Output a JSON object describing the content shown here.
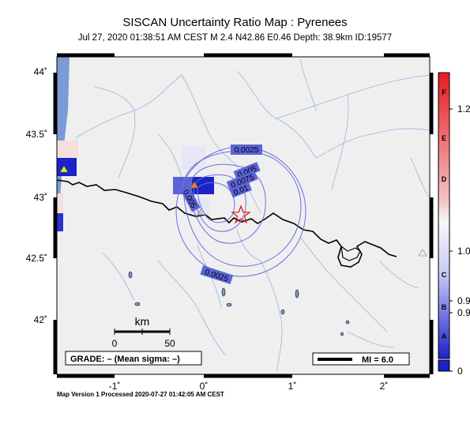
{
  "map": {
    "title": "SISCAN Uncertainty Ratio Map : Pyrenees",
    "subtitle": "Jul 27, 2020 01:38:51 AM CEST   M 2.4   N42.86 E0.46   Depth: 38.9km   ID:19577",
    "lat_labels": [
      "44˚",
      "43.5˚",
      "43˚",
      "42.5˚",
      "42˚"
    ],
    "lon_labels": [
      "-1˚",
      "0˚",
      "1˚",
      "2˚"
    ],
    "contour_labels": [
      "0.0025",
      "0.005",
      "0.0075",
      "0.01",
      "0.005",
      "0.0025"
    ],
    "scale_bar": {
      "unit": "km",
      "ticks": [
        "0",
        "50"
      ]
    },
    "grade_label": "GRADE: – (Mean sigma: –)",
    "mi_legend": "MI = 6.0",
    "footer": "Map Version 1 Processed 2020-07-27 01:42:05 AM CEST",
    "epicenter": {
      "lat": 42.86,
      "lon": 0.46,
      "symbol": "star"
    }
  },
  "colorbar": {
    "letters": [
      "F",
      "E",
      "D",
      "C",
      "B",
      "A"
    ],
    "values": [
      "1.2",
      "1.0",
      "0.9",
      "0.9",
      "0"
    ],
    "colors": {
      "top": "#e8191d",
      "middle": "#f8f8f8",
      "bottom": "#1a22c8"
    }
  }
}
